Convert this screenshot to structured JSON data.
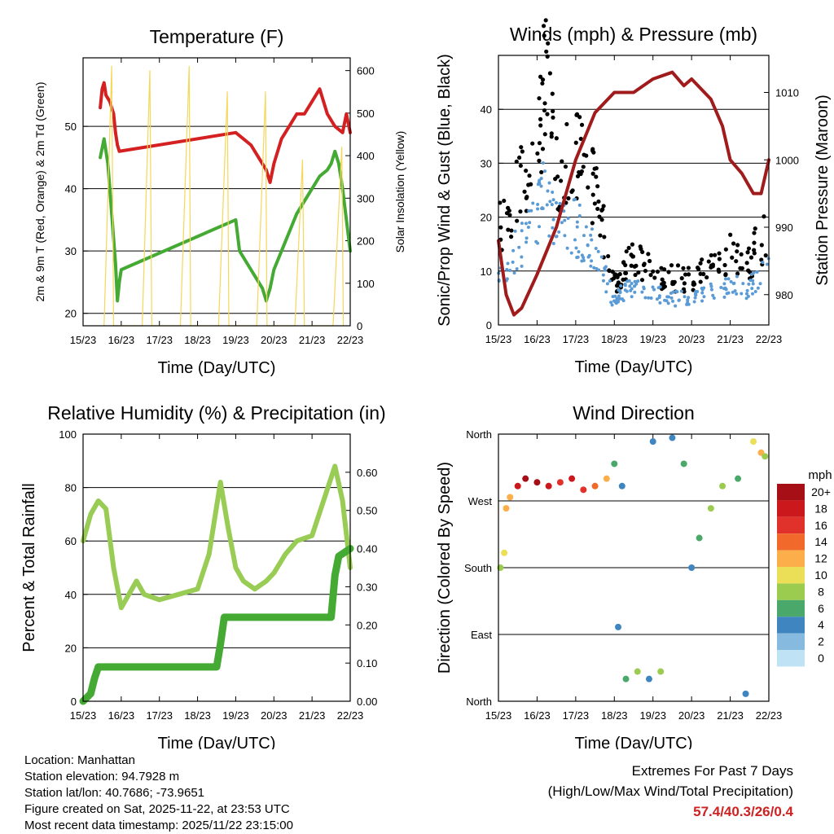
{
  "chart_data": [
    {
      "id": "temperature",
      "type": "line",
      "title": "Temperature (F)",
      "xlabel": "Time (Day/UTC)",
      "ylabel": "2m & 9m T (Red, Orange) & 2m Td (Green)",
      "y2label": "Solar Insolation (Yellow)",
      "xticks": [
        "15/23",
        "16/23",
        "17/23",
        "18/23",
        "19/23",
        "20/23",
        "21/23",
        "22/23"
      ],
      "ylim": [
        18,
        61
      ],
      "yticks": [
        20,
        30,
        40,
        50
      ],
      "y2lim": [
        0,
        630
      ],
      "y2ticks": [
        0,
        100,
        200,
        300,
        400,
        500,
        600
      ],
      "series": [
        {
          "name": "2m T",
          "color": "#d42020",
          "x": [
            0.45,
            0.5,
            0.55,
            0.6,
            0.7,
            0.8,
            0.85,
            0.9,
            0.95,
            4,
            4.2,
            4.4,
            4.6,
            4.8,
            4.9,
            5.0,
            5.2,
            5.4,
            5.6,
            5.8,
            6.0,
            6.2,
            6.4,
            6.6,
            6.8,
            6.9,
            7.0
          ],
          "y": [
            53,
            56,
            57,
            55,
            54,
            52,
            49,
            47,
            46,
            49,
            48,
            47,
            45,
            43,
            41,
            44,
            48,
            50,
            52,
            52,
            54,
            56,
            52,
            50,
            49,
            52,
            49
          ]
        },
        {
          "name": "2m Td",
          "color": "#44aa33",
          "x": [
            0.45,
            0.55,
            0.65,
            0.75,
            0.85,
            0.9,
            0.95,
            1.0,
            4.0,
            4.1,
            4.3,
            4.5,
            4.7,
            4.8,
            4.9,
            5.0,
            5.2,
            5.4,
            5.6,
            5.8,
            6.0,
            6.2,
            6.4,
            6.5,
            6.6,
            6.7,
            6.8,
            6.9,
            7.0
          ],
          "y": [
            45,
            48,
            44,
            36,
            28,
            22,
            25,
            27,
            35,
            30,
            28,
            26,
            24,
            22,
            24,
            27,
            30,
            33,
            36,
            38,
            40,
            42,
            43,
            44,
            46,
            44,
            40,
            35,
            30
          ]
        },
        {
          "name": "Solar Insolation",
          "color": "#f5d75a",
          "axis": "y2",
          "x": [
            0.55,
            0.75,
            0.8,
            1.55,
            1.75,
            1.8,
            2.55,
            2.78,
            2.82,
            3.55,
            3.78,
            3.82,
            4.55,
            4.78,
            4.82,
            5.55,
            5.75,
            5.8,
            6.55,
            6.78,
            6.82
          ],
          "y": [
            0,
            610,
            0,
            0,
            600,
            0,
            0,
            610,
            0,
            0,
            550,
            0,
            0,
            550,
            0,
            0,
            390,
            0,
            0,
            420,
            0
          ]
        }
      ]
    },
    {
      "id": "winds",
      "type": "scatter",
      "title": "Winds (mph) & Pressure (mb)",
      "xlabel": "Time (Day/UTC)",
      "ylabel": "Sonic/Prop Wind & Gust (Blue, Black)",
      "y2label": "Station Pressure (Maroon)",
      "xticks": [
        "15/23",
        "16/23",
        "17/23",
        "18/23",
        "19/23",
        "20/23",
        "21/23",
        "22/23"
      ],
      "ylim": [
        0,
        50
      ],
      "yticks": [
        0,
        10,
        20,
        30,
        40
      ],
      "y2lim": [
        975.5,
        1015.5
      ],
      "y2ticks": [
        980,
        990,
        1000,
        1010
      ],
      "series": [
        {
          "name": "Gust",
          "color": "#000000",
          "x": [
            0,
            0.5,
            1,
            1.2,
            1.5,
            2,
            2.3,
            2.6,
            3,
            3.2,
            3.5,
            4,
            4.5,
            5,
            5.5,
            6,
            6.5,
            7
          ],
          "y": [
            18,
            24,
            33,
            45,
            30,
            32,
            28,
            22,
            8,
            10,
            12,
            10,
            9,
            8,
            11,
            13,
            12,
            18
          ]
        },
        {
          "name": "Wind",
          "color": "#5b9bd5",
          "x": [
            0,
            0.5,
            1,
            1.2,
            1.5,
            2,
            2.3,
            2.6,
            3,
            3.2,
            3.5,
            4,
            4.5,
            5,
            5.5,
            6,
            6.5,
            7
          ],
          "y": [
            10,
            14,
            20,
            24,
            18,
            18,
            16,
            13,
            4,
            6,
            7,
            6,
            5,
            5,
            6,
            7,
            7,
            10
          ]
        },
        {
          "name": "Station Pressure",
          "color": "#a01c1c",
          "axis": "y2",
          "x": [
            0,
            0.2,
            0.4,
            0.6,
            1,
            1.5,
            2,
            2.5,
            3,
            3.5,
            4,
            4.5,
            4.8,
            5,
            5.5,
            5.8,
            6,
            6.3,
            6.6,
            6.8,
            7
          ],
          "y": [
            988,
            980,
            977,
            978,
            983,
            990,
            1000,
            1007,
            1010,
            1010,
            1012,
            1013,
            1011,
            1012,
            1009,
            1005,
            1000,
            998,
            995,
            995,
            1000
          ]
        }
      ]
    },
    {
      "id": "rh_precip",
      "type": "line",
      "title": "Relative Humidity (%) & Precipitation (in)",
      "xlabel": "Time (Day/UTC)",
      "ylabel": "Percent & Total Rainfall",
      "xticks": [
        "15/23",
        "16/23",
        "17/23",
        "18/23",
        "19/23",
        "20/23",
        "21/23",
        "22/23"
      ],
      "ylim": [
        0,
        100
      ],
      "yticks": [
        0,
        20,
        40,
        60,
        80,
        100
      ],
      "y2lim": [
        0,
        0.7
      ],
      "y2ticks": [
        "0.00",
        "0.10",
        "0.20",
        "0.30",
        "0.40",
        "0.50",
        "0.60"
      ],
      "series": [
        {
          "name": "Relative Humidity",
          "color": "#99cc55",
          "x": [
            0,
            0.2,
            0.4,
            0.6,
            0.8,
            1,
            1.2,
            1.4,
            1.6,
            2,
            2.5,
            3,
            3.3,
            3.6,
            3.8,
            4,
            4.2,
            4.5,
            4.8,
            5,
            5.3,
            5.6,
            6,
            6.3,
            6.6,
            6.8,
            7
          ],
          "y": [
            60,
            70,
            75,
            72,
            50,
            35,
            40,
            45,
            40,
            38,
            40,
            42,
            55,
            82,
            65,
            50,
            45,
            42,
            45,
            48,
            55,
            60,
            62,
            75,
            88,
            75,
            50
          ]
        },
        {
          "name": "Total Precipitation",
          "color": "#44aa33",
          "axis": "y2",
          "x": [
            0,
            0.2,
            0.3,
            0.4,
            3.5,
            3.6,
            3.7,
            6.5,
            6.6,
            6.7,
            7
          ],
          "y": [
            0,
            0.02,
            0.06,
            0.09,
            0.09,
            0.15,
            0.22,
            0.22,
            0.33,
            0.38,
            0.4
          ]
        }
      ]
    },
    {
      "id": "wind_direction",
      "type": "scatter",
      "title": "Wind Direction",
      "xlabel": "Time (Day/UTC)",
      "ylabel": "Direction (Colored By Speed)",
      "xticks": [
        "15/23",
        "16/23",
        "17/23",
        "18/23",
        "19/23",
        "20/23",
        "21/23",
        "22/23"
      ],
      "ylim": [
        0,
        360
      ],
      "yticks": [
        "North",
        "East",
        "South",
        "West",
        "North"
      ],
      "legend_title": "mph",
      "colorbar_labels": [
        "20+",
        "18",
        "16",
        "14",
        "12",
        "10",
        "8",
        "6",
        "4",
        "2",
        "0"
      ],
      "colorbar_colors": [
        "#a50f15",
        "#cb181d",
        "#e0312b",
        "#f16a2c",
        "#fcae4a",
        "#ebdf58",
        "#9ccc4f",
        "#4aa86a",
        "#3f86c0",
        "#86badf",
        "#bfe2f4"
      ],
      "points": [
        {
          "x": 0.05,
          "y": 180,
          "s": 8
        },
        {
          "x": 0.15,
          "y": 200,
          "s": 10
        },
        {
          "x": 0.2,
          "y": 260,
          "s": 12
        },
        {
          "x": 0.3,
          "y": 275,
          "s": 12
        },
        {
          "x": 0.5,
          "y": 290,
          "s": 18
        },
        {
          "x": 0.7,
          "y": 300,
          "s": 20
        },
        {
          "x": 1.0,
          "y": 295,
          "s": 20
        },
        {
          "x": 1.3,
          "y": 290,
          "s": 18
        },
        {
          "x": 1.6,
          "y": 295,
          "s": 16
        },
        {
          "x": 1.9,
          "y": 300,
          "s": 18
        },
        {
          "x": 2.2,
          "y": 285,
          "s": 16
        },
        {
          "x": 2.5,
          "y": 290,
          "s": 14
        },
        {
          "x": 2.8,
          "y": 300,
          "s": 12
        },
        {
          "x": 3.0,
          "y": 320,
          "s": 6
        },
        {
          "x": 3.2,
          "y": 290,
          "s": 4
        },
        {
          "x": 3.1,
          "y": 100,
          "s": 3
        },
        {
          "x": 3.3,
          "y": 30,
          "s": 6
        },
        {
          "x": 3.6,
          "y": 40,
          "s": 8
        },
        {
          "x": 3.9,
          "y": 30,
          "s": 4
        },
        {
          "x": 4.2,
          "y": 40,
          "s": 8
        },
        {
          "x": 4.0,
          "y": 350,
          "s": 3
        },
        {
          "x": 4.5,
          "y": 355,
          "s": 4
        },
        {
          "x": 4.8,
          "y": 320,
          "s": 5
        },
        {
          "x": 5.0,
          "y": 180,
          "s": 4
        },
        {
          "x": 5.2,
          "y": 220,
          "s": 6
        },
        {
          "x": 5.5,
          "y": 260,
          "s": 8
        },
        {
          "x": 5.8,
          "y": 290,
          "s": 7
        },
        {
          "x": 6.2,
          "y": 300,
          "s": 6
        },
        {
          "x": 6.4,
          "y": 10,
          "s": 4
        },
        {
          "x": 6.6,
          "y": 350,
          "s": 10
        },
        {
          "x": 6.8,
          "y": 335,
          "s": 12
        },
        {
          "x": 6.9,
          "y": 330,
          "s": 8
        }
      ]
    }
  ],
  "meta": {
    "location": "Location: Manhattan",
    "elevation": "Station elevation: 94.7928 m",
    "latlon": "Station lat/lon: 40.7686; -73.9651",
    "created": "Figure created on Sat, 2025-11-22, at 23:53 UTC",
    "latest": "Most recent data timestamp: 2025/11/22 23:15:00"
  },
  "extremes": {
    "title": "Extremes For Past 7 Days",
    "subtitle": "(High/Low/Max Wind/Total Precipitation)",
    "values": "57.4/40.3/26/0.4"
  }
}
